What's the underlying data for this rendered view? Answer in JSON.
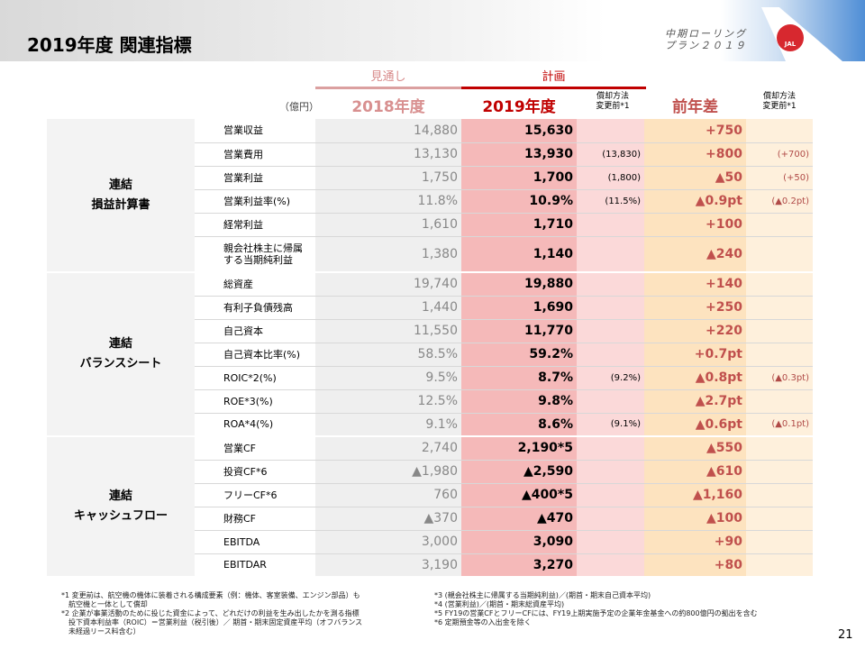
{
  "header": {
    "title": "2019年度 関連指標",
    "plan_line1": "中期ローリング",
    "plan_line2": "プラン２０１９",
    "logo_text": "JAL"
  },
  "columns": {
    "unit": "（億円）",
    "forecast_label": "見通し",
    "plan_label": "計画",
    "fy2018": "2018年度",
    "fy2019": "2019年度",
    "note_col": "償却方法\n変更前*1",
    "diff": "前年差",
    "note_col2": "償却方法\n変更前*1"
  },
  "sections": [
    {
      "label": "連結\n損益計算書",
      "rows": [
        {
          "item": "営業収益",
          "fy2018": "14,880",
          "fy2019": "15,630",
          "note": "",
          "diff": "+750",
          "note2": ""
        },
        {
          "item": "営業費用",
          "fy2018": "13,130",
          "fy2019": "13,930",
          "note": "(13,830)",
          "diff": "+800",
          "note2": "(+700)"
        },
        {
          "item": "営業利益",
          "fy2018": "1,750",
          "fy2019": "1,700",
          "note": "(1,800)",
          "diff": "▲50",
          "note2": "(+50)"
        },
        {
          "item": "営業利益率(%)",
          "fy2018": "11.8%",
          "fy2019": "10.9%",
          "note": "(11.5%)",
          "diff": "▲0.9pt",
          "note2": "(▲0.2pt)"
        },
        {
          "item": "経常利益",
          "fy2018": "1,610",
          "fy2019": "1,710",
          "note": "",
          "diff": "+100",
          "note2": ""
        },
        {
          "item": "親会社株主に帰属\nする当期純利益",
          "fy2018": "1,380",
          "fy2019": "1,140",
          "note": "",
          "diff": "▲240",
          "note2": ""
        }
      ]
    },
    {
      "label": "連結\nバランスシート",
      "rows": [
        {
          "item": "総資産",
          "fy2018": "19,740",
          "fy2019": "19,880",
          "note": "",
          "diff": "+140",
          "note2": ""
        },
        {
          "item": "有利子負債残高",
          "fy2018": "1,440",
          "fy2019": "1,690",
          "note": "",
          "diff": "+250",
          "note2": ""
        },
        {
          "item": "自己資本",
          "fy2018": "11,550",
          "fy2019": "11,770",
          "note": "",
          "diff": "+220",
          "note2": ""
        },
        {
          "item": "自己資本比率(%)",
          "fy2018": "58.5%",
          "fy2019": "59.2%",
          "note": "",
          "diff": "+0.7pt",
          "note2": ""
        },
        {
          "item": "ROIC*2(%)",
          "fy2018": "9.5%",
          "fy2019": "8.7%",
          "note": "(9.2%)",
          "diff": "▲0.8pt",
          "note2": "(▲0.3pt)"
        },
        {
          "item": "ROE*3(%)",
          "fy2018": "12.5%",
          "fy2019": "9.8%",
          "note": "",
          "diff": "▲2.7pt",
          "note2": ""
        },
        {
          "item": "ROA*4(%)",
          "fy2018": "9.1%",
          "fy2019": "8.6%",
          "note": "(9.1%)",
          "diff": "▲0.6pt",
          "note2": "(▲0.1pt)"
        }
      ]
    },
    {
      "label": "連結\nキャッシュフロー",
      "rows": [
        {
          "item": "営業CF",
          "fy2018": "2,740",
          "fy2019": "2,190*5",
          "note": "",
          "diff": "▲550",
          "note2": ""
        },
        {
          "item": "投資CF*6",
          "fy2018": "▲1,980",
          "fy2019": "▲2,590",
          "note": "",
          "diff": "▲610",
          "note2": ""
        },
        {
          "item": "フリーCF*6",
          "fy2018": "760",
          "fy2019": "▲400*5",
          "note": "",
          "diff": "▲1,160",
          "note2": ""
        },
        {
          "item": "財務CF",
          "fy2018": "▲370",
          "fy2019": "▲470",
          "note": "",
          "diff": "▲100",
          "note2": ""
        },
        {
          "item": "EBITDA",
          "fy2018": "3,000",
          "fy2019": "3,090",
          "note": "",
          "diff": "+90",
          "note2": ""
        },
        {
          "item": "EBITDAR",
          "fy2018": "3,190",
          "fy2019": "3,270",
          "note": "",
          "diff": "+80",
          "note2": ""
        }
      ]
    }
  ],
  "footnotes_left": [
    "*1 変更前は、航空機の機体に装着される構成要素（例：機体、客室装備、エンジン部品）も",
    "　航空機と一体として償却",
    "*2 企業が事業活動のために投じた資金によって、どれだけの利益を生み出したかを測る指標",
    "　投下資本利益率（ROIC）＝営業利益（税引後）／ 期首・期末固定資産平均（オフバランス",
    "　未経過リース料含む）"
  ],
  "footnotes_right": [
    "*3 (親会社株主に帰属する当期純利益)／(期首・期末自己資本平均)",
    "*4 (営業利益)／(期首・期末総資産平均)",
    "*5 FY19の営業CFとフリーCFには、FY19上期実施予定の企業年金基金への約800億円の拠出を含む",
    "*6 定期預金等の入出金を除く"
  ],
  "page_number": "21"
}
